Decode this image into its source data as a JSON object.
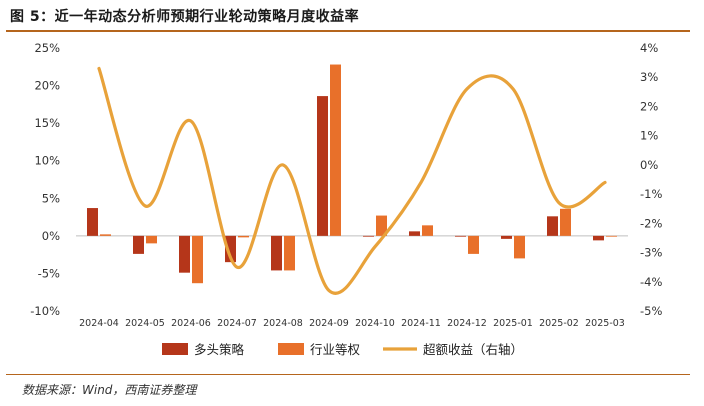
{
  "title": "图 5：近一年动态分析师预期行业轮动策略月度收益率",
  "source": "数据来源：Wind，西南证券整理",
  "colors": {
    "strategy": "#b5361a",
    "industry": "#e8702a",
    "excess": "#e8a23a",
    "rule": "#b5651d",
    "axis": "#bfbfbf"
  },
  "chart_data": {
    "type": "bar",
    "categories": [
      "2024-04",
      "2024-05",
      "2024-06",
      "2024-07",
      "2024-08",
      "2024-09",
      "2024-10",
      "2024-11",
      "2024-12",
      "2025-01",
      "2025-02",
      "2025-03"
    ],
    "series": [
      {
        "name": "多头策略",
        "kind": "bar",
        "axis": "left",
        "values": [
          3.7,
          -2.4,
          -4.9,
          -3.5,
          -4.6,
          18.6,
          0.0,
          0.6,
          -0.1,
          -0.4,
          2.6,
          -0.6
        ]
      },
      {
        "name": "行业等权",
        "kind": "bar",
        "axis": "left",
        "values": [
          0.2,
          -1.0,
          -6.3,
          -0.2,
          -4.6,
          22.8,
          2.7,
          1.4,
          -2.4,
          -3.0,
          3.6,
          -0.1
        ]
      },
      {
        "name": "超额收益（右轴）",
        "kind": "line",
        "axis": "right",
        "values": [
          3.3,
          -1.4,
          1.5,
          -3.5,
          0.0,
          -4.3,
          -2.8,
          -0.6,
          2.6,
          2.6,
          -1.3,
          -0.6
        ]
      }
    ],
    "y_left": {
      "min": -10,
      "max": 25,
      "ticks": [
        25,
        20,
        15,
        10,
        5,
        0,
        -5,
        -10
      ]
    },
    "y_right": {
      "min": -5,
      "max": 4,
      "ticks": [
        4,
        3,
        2,
        1,
        0,
        -1,
        -2,
        -3,
        -4,
        -5
      ]
    },
    "legend_position": "bottom"
  }
}
